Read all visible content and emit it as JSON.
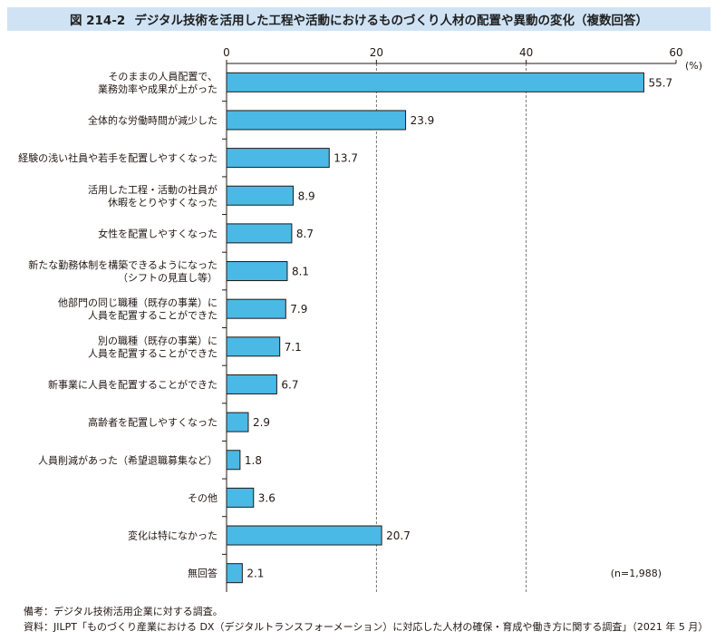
{
  "figure": {
    "number": "図 214-2",
    "title": "デジタル技術を活用した工程や活動におけるものづくり人材の配置や異動の変化（複数回答）"
  },
  "chart_data": {
    "type": "bar",
    "orientation": "horizontal",
    "unit": "(%)",
    "xlim": [
      0,
      60
    ],
    "xticks": [
      0,
      20,
      40,
      60
    ],
    "grid": "dashed vertical lines at 20 and 40",
    "bar_color": "#4ab9e6",
    "sample_note": "(n=1,988)",
    "categories": [
      [
        "そのままの人員配置で、",
        "業務効率や成果が上がった"
      ],
      [
        "全体的な労働時間が減少した"
      ],
      [
        "経験の浅い社員や若手を配置しやすくなった"
      ],
      [
        "活用した工程・活動の社員が",
        "休暇をとりやすくなった"
      ],
      [
        "女性を配置しやすくなった"
      ],
      [
        "新たな勤務体制を構築できるようになった",
        "（シフトの見直し等）"
      ],
      [
        "他部門の同じ職種（既存の事業）に",
        "人員を配置することができた"
      ],
      [
        "別の職種（既存の事業）に",
        "人員を配置することができた"
      ],
      [
        "新事業に人員を配置することができた"
      ],
      [
        "高齢者を配置しやすくなった"
      ],
      [
        "人員削減があった（希望退職募集など）"
      ],
      [
        "その他"
      ],
      [
        "変化は特になかった"
      ],
      [
        "無回答"
      ]
    ],
    "values": [
      55.7,
      23.9,
      13.7,
      8.9,
      8.7,
      8.1,
      7.9,
      7.1,
      6.7,
      2.9,
      1.8,
      3.6,
      20.7,
      2.1
    ],
    "value_labels": [
      "55.7",
      "23.9",
      "13.7",
      "8.9",
      "8.7",
      "8.1",
      "7.9",
      "7.1",
      "6.7",
      "2.9",
      "1.8",
      "3.6",
      "20.7",
      "2.1"
    ]
  },
  "notes": {
    "note1": "備考：デジタル技術活用企業に対する調査。",
    "note2": "資料：JILPT「ものづくり産業における DX（デジタルトランスフォーメーション）に対応した人材の確保・育成や働き方に関する調査」（2021 年 5 月）"
  }
}
